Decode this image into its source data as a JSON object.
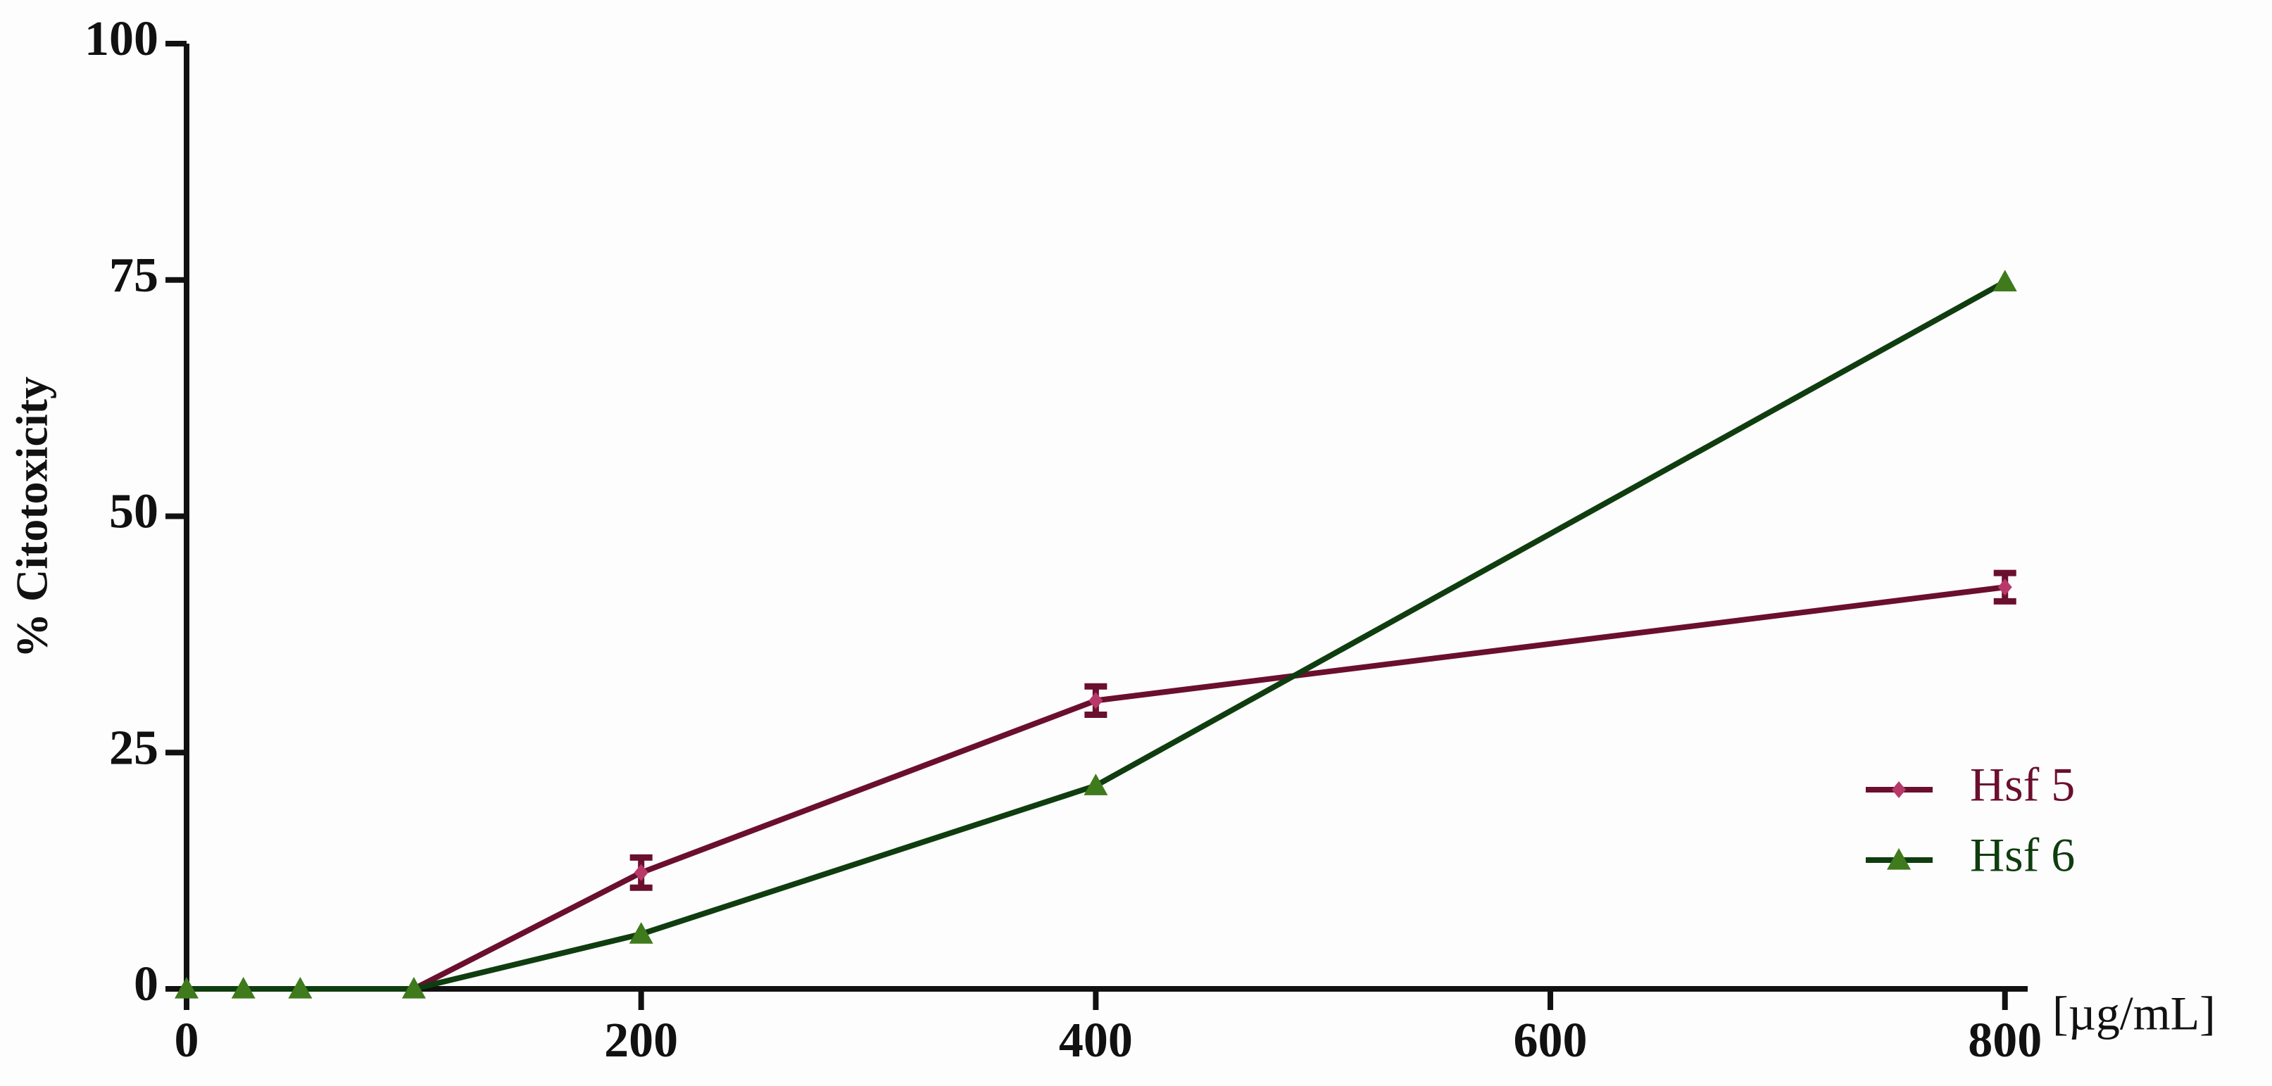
{
  "chart_data": {
    "type": "line",
    "ylabel": "% Citotoxicity",
    "xlabel": "[µg/mL]",
    "x": [
      0,
      25,
      50,
      100,
      200,
      400,
      800
    ],
    "series": [
      {
        "name": "Hsf 5",
        "color": "#6b0f2e",
        "marker_color": "#b8386a",
        "marker": "diamond",
        "values": [
          0,
          0,
          0,
          0,
          12.3,
          30.5,
          42.5
        ],
        "errors": [
          0,
          0,
          0,
          0,
          1.6,
          1.5,
          1.5
        ]
      },
      {
        "name": "Hsf 6",
        "color": "#0f3d0f",
        "marker_color": "#3f7a1c",
        "marker": "triangle",
        "values": [
          0,
          0,
          0,
          0,
          5.8,
          21.5,
          74.8
        ]
      }
    ],
    "xlim": [
      0,
      810
    ],
    "xticks": [
      0,
      200,
      400,
      600,
      800
    ],
    "ylim": [
      0,
      100
    ],
    "yticks": [
      0,
      25,
      50,
      75,
      100
    ],
    "legend": "lower right"
  }
}
